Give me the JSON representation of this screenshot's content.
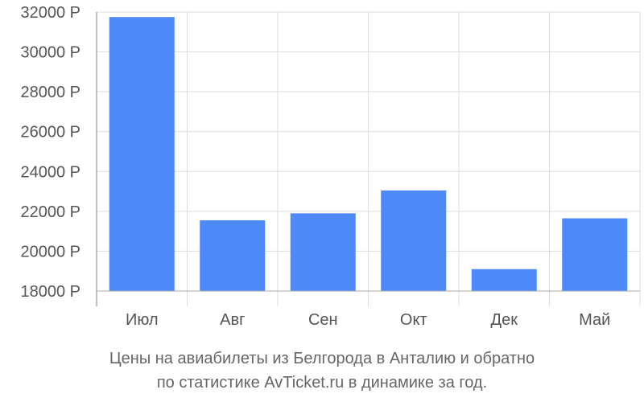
{
  "chart_data": {
    "type": "bar",
    "categories": [
      "Июл",
      "Авг",
      "Сен",
      "Окт",
      "Дек",
      "Май"
    ],
    "values": [
      31750,
      21550,
      21900,
      23050,
      19100,
      21650
    ],
    "ylim": [
      18000,
      32000
    ],
    "yticks": [
      18000,
      20000,
      22000,
      24000,
      26000,
      28000,
      30000,
      32000
    ],
    "ytick_suffix": " Р",
    "grid": true,
    "bar_color": "#4d89f9",
    "grid_color": "#dddddd",
    "axis_color": "#aaaaaa"
  },
  "caption": {
    "line1": "Цены на авиабилеты из Белгорода в Анталию и обратно",
    "line2": "по статистике AvTicket.ru в динамике за год."
  }
}
